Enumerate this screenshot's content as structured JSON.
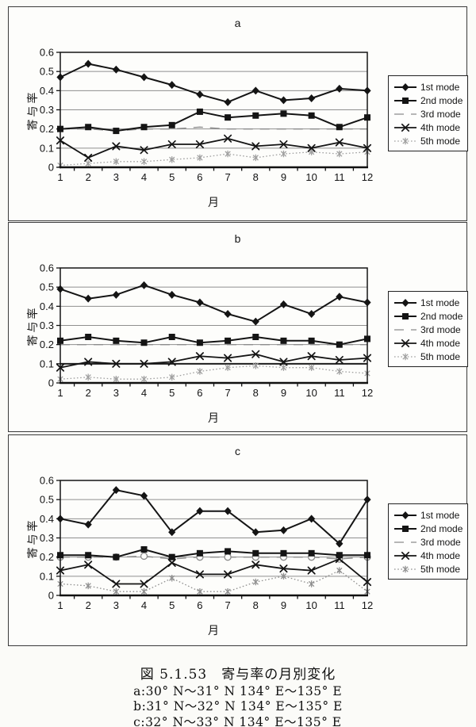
{
  "caption": {
    "title": "図 5.1.53　寄与率の月別変化",
    "lines": [
      "a:30° N〜31° N 134° E〜135° E",
      "b:31° N〜32° N 134° E〜135° E",
      "c:32° N〜33° N 134° E〜135° E"
    ]
  },
  "chart_data": [
    {
      "type": "line",
      "panel_label": "a",
      "xlabel": "月",
      "ylabel": "寄与率",
      "x": [
        1,
        2,
        3,
        4,
        5,
        6,
        7,
        8,
        9,
        10,
        11,
        12
      ],
      "ylim": [
        0,
        0.6
      ],
      "yticks": [
        0,
        0.1,
        0.2,
        0.3,
        0.4,
        0.5,
        0.6
      ],
      "ytick_labels": [
        "0",
        "0.1",
        "0.2",
        "0.3",
        "0.4",
        "0.5",
        "0.6"
      ],
      "grid": true,
      "legend_position": "right",
      "series": [
        {
          "name": "1st mode",
          "color": "#141414",
          "line": "solid",
          "marker": "diamond",
          "values": [
            0.47,
            0.54,
            0.51,
            0.47,
            0.43,
            0.38,
            0.34,
            0.4,
            0.35,
            0.36,
            0.41,
            0.4
          ]
        },
        {
          "name": "2nd mode",
          "color": "#141414",
          "line": "solid",
          "marker": "square",
          "values": [
            0.2,
            0.21,
            0.19,
            0.21,
            0.22,
            0.29,
            0.26,
            0.27,
            0.28,
            0.27,
            0.21,
            0.26
          ]
        },
        {
          "name": "3rd mode",
          "color": "#8c8c8c",
          "line": "dashed",
          "marker": "none",
          "values": [
            0.2,
            0.2,
            0.19,
            0.2,
            0.2,
            0.21,
            0.2,
            0.2,
            0.2,
            0.2,
            0.2,
            0.2
          ]
        },
        {
          "name": "4th mode",
          "color": "#141414",
          "line": "solid",
          "marker": "x",
          "values": [
            0.14,
            0.05,
            0.11,
            0.09,
            0.12,
            0.12,
            0.15,
            0.11,
            0.12,
            0.1,
            0.13,
            0.1
          ]
        },
        {
          "name": "5th mode",
          "color": "#a0a0a0",
          "line": "dotted",
          "marker": "asterisk",
          "values": [
            0.01,
            0.02,
            0.03,
            0.03,
            0.04,
            0.05,
            0.07,
            0.05,
            0.07,
            0.08,
            0.07,
            0.08
          ]
        }
      ]
    },
    {
      "type": "line",
      "panel_label": "b",
      "xlabel": "月",
      "ylabel": "寄与率",
      "x": [
        1,
        2,
        3,
        4,
        5,
        6,
        7,
        8,
        9,
        10,
        11,
        12
      ],
      "ylim": [
        0,
        0.6
      ],
      "yticks": [
        0,
        0.1,
        0.2,
        0.3,
        0.4,
        0.5,
        0.6
      ],
      "ytick_labels": [
        "0",
        "0.1",
        "0.2",
        "0.3",
        "0.4",
        "0.5",
        "0.6"
      ],
      "grid": true,
      "emphasized_gridline": 0.1,
      "legend_position": "right",
      "series": [
        {
          "name": "1st mode",
          "color": "#141414",
          "line": "solid",
          "marker": "diamond",
          "values": [
            0.49,
            0.44,
            0.46,
            0.51,
            0.46,
            0.42,
            0.36,
            0.32,
            0.41,
            0.36,
            0.45,
            0.42
          ]
        },
        {
          "name": "2nd mode",
          "color": "#141414",
          "line": "solid",
          "marker": "square",
          "values": [
            0.22,
            0.24,
            0.22,
            0.21,
            0.24,
            0.21,
            0.22,
            0.24,
            0.22,
            0.22,
            0.2,
            0.23
          ]
        },
        {
          "name": "3rd mode",
          "color": "#8c8c8c",
          "line": "dashed",
          "marker": "none",
          "values": [
            0.2,
            0.2,
            0.2,
            0.2,
            0.2,
            0.2,
            0.2,
            0.2,
            0.2,
            0.2,
            0.2,
            0.2
          ]
        },
        {
          "name": "4th mode",
          "color": "#141414",
          "line": "solid",
          "marker": "x",
          "values": [
            0.08,
            0.11,
            0.1,
            0.1,
            0.11,
            0.14,
            0.13,
            0.15,
            0.11,
            0.14,
            0.12,
            0.13
          ]
        },
        {
          "name": "5th mode",
          "color": "#a0a0a0",
          "line": "dotted",
          "marker": "asterisk",
          "values": [
            0.02,
            0.03,
            0.02,
            0.02,
            0.03,
            0.06,
            0.08,
            0.09,
            0.08,
            0.08,
            0.06,
            0.05
          ]
        }
      ]
    },
    {
      "type": "line",
      "panel_label": "c",
      "xlabel": "月",
      "ylabel": "寄与率",
      "x": [
        1,
        2,
        3,
        4,
        5,
        6,
        7,
        8,
        9,
        10,
        11,
        12
      ],
      "ylim": [
        0,
        0.6
      ],
      "yticks": [
        0,
        0.1,
        0.2,
        0.3,
        0.4,
        0.5,
        0.6
      ],
      "ytick_labels": [
        "0",
        "0.1",
        "0.2",
        "0.3",
        "0.4",
        "0.5",
        "0.6"
      ],
      "grid": true,
      "legend_position": "right",
      "series": [
        {
          "name": "1st mode",
          "color": "#141414",
          "line": "solid",
          "marker": "diamond",
          "values": [
            0.4,
            0.37,
            0.55,
            0.52,
            0.33,
            0.44,
            0.44,
            0.33,
            0.34,
            0.4,
            0.27,
            0.5
          ]
        },
        {
          "name": "2nd mode",
          "color": "#141414",
          "line": "solid",
          "marker": "square",
          "values": [
            0.21,
            0.21,
            0.2,
            0.24,
            0.2,
            0.22,
            0.23,
            0.22,
            0.22,
            0.22,
            0.21,
            0.21
          ]
        },
        {
          "name": "3rd mode",
          "color": "#8c8c8c",
          "line": "dashed",
          "marker": "circle-open",
          "values": [
            0.2,
            0.2,
            0.2,
            0.205,
            0.19,
            0.2,
            0.2,
            0.2,
            0.2,
            0.2,
            0.19,
            0.2
          ]
        },
        {
          "name": "4th mode",
          "color": "#141414",
          "line": "solid",
          "marker": "x",
          "values": [
            0.13,
            0.16,
            0.06,
            0.06,
            0.17,
            0.11,
            0.11,
            0.16,
            0.14,
            0.13,
            0.19,
            0.07
          ]
        },
        {
          "name": "5th mode",
          "color": "#909090",
          "line": "dotted",
          "marker": "asterisk",
          "values": [
            0.06,
            0.05,
            0.02,
            0.02,
            0.09,
            0.02,
            0.02,
            0.07,
            0.1,
            0.06,
            0.13,
            0.02
          ]
        }
      ]
    }
  ]
}
